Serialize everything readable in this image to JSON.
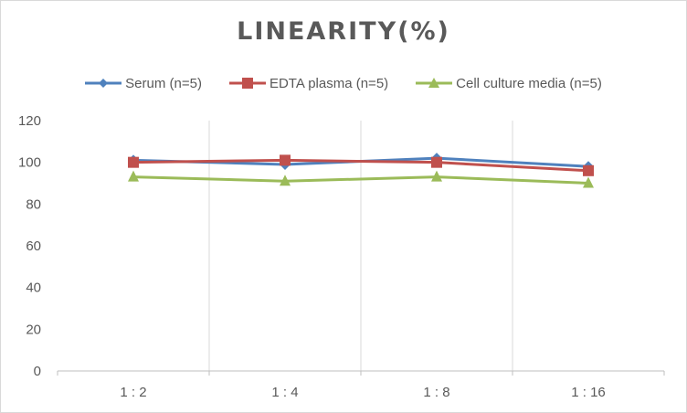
{
  "chart_data": {
    "type": "line",
    "title": "LINEARITY(%)",
    "categories": [
      "1:2",
      "1:4",
      "1:8",
      "1:16"
    ],
    "ylim": [
      0,
      120
    ],
    "yticks": [
      0,
      20,
      40,
      60,
      80,
      100,
      120
    ],
    "grid": "vertical",
    "legend_position": "top",
    "series": [
      {
        "name": "Serum (n=5)",
        "values": [
          101,
          99,
          102,
          98
        ],
        "color": "#4f81bd",
        "marker": "diamond"
      },
      {
        "name": "EDTA plasma (n=5)",
        "values": [
          100,
          101,
          100,
          96
        ],
        "color": "#c0504d",
        "marker": "square"
      },
      {
        "name": "Cell culture media (n=5)",
        "values": [
          93,
          91,
          93,
          90
        ],
        "color": "#9bbb59",
        "marker": "triangle"
      }
    ]
  }
}
